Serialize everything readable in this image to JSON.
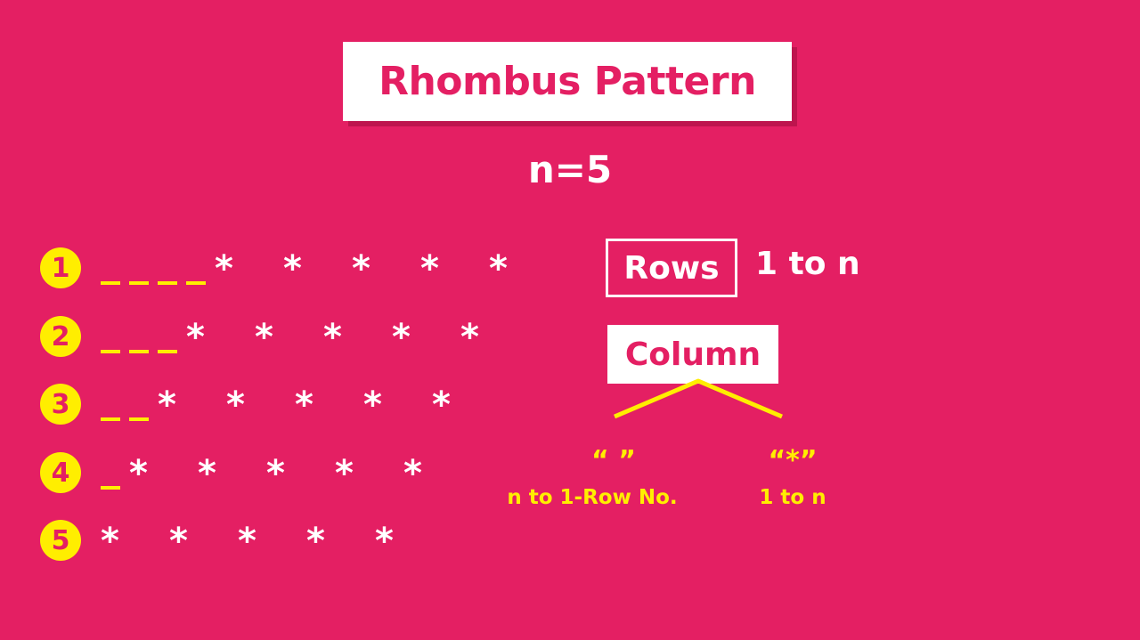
{
  "title": "Rhombus Pattern",
  "n_label": "n=5",
  "rows": [
    {
      "number": "1",
      "dashes": 4,
      "stars": 5
    },
    {
      "number": "2",
      "dashes": 3,
      "stars": 5
    },
    {
      "number": "3",
      "dashes": 2,
      "stars": 5
    },
    {
      "number": "4",
      "dashes": 1,
      "stars": 5
    },
    {
      "number": "5",
      "dashes": 0,
      "stars": 5
    }
  ],
  "star_glyph": "*",
  "rows_label": "Rows",
  "rows_range": "1 to n",
  "column_label": "Column",
  "space_symbol": "“ ”",
  "space_range": "n to 1-Row No.",
  "star_symbol": "“*”",
  "star_range": "1 to n",
  "colors": {
    "background": "#e41f63",
    "accent": "#ffee00",
    "text": "#ffffff"
  }
}
